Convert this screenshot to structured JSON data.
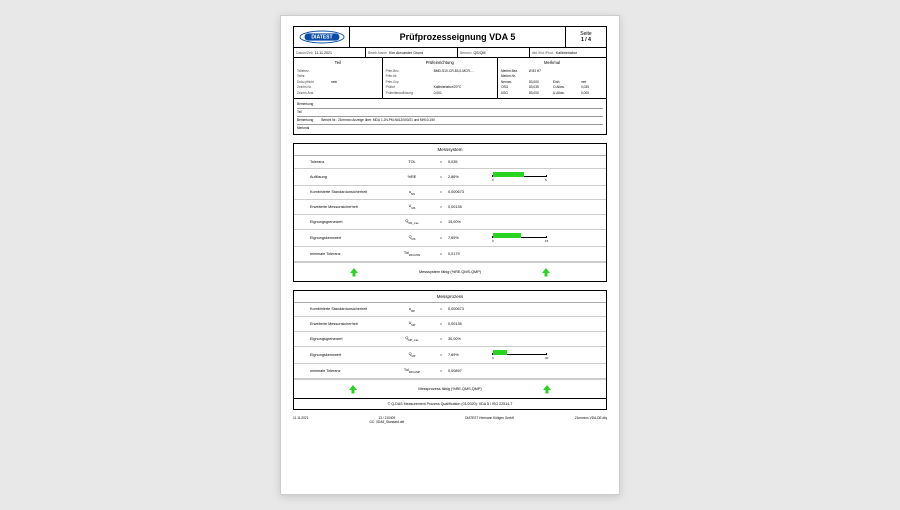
{
  "header": {
    "logo_text": "DIATEST",
    "logo_colors": {
      "fill": "#0a4da8",
      "ellipse_stroke": "#0a4da8",
      "text": "#ffffff"
    },
    "title": "Prüfprozesseignung VDA 5",
    "page_label": "Seite",
    "page_value": "1 / 4"
  },
  "meta": {
    "date_label": "Datum/Zeit",
    "date_value": "11.11.2021",
    "user_label": "Bearb.Name",
    "user_value": "Kim Alexander Grund",
    "area_label": "Bereich",
    "area_value": "QS/QM",
    "dept_label": "Abt./Kst./Prod.",
    "dept_value": "Kalibrierlabor"
  },
  "cols": {
    "teil": {
      "title": "Teil",
      "rows": [
        {
          "k": "Teilebez.",
          "v": ""
        },
        {
          "k": "Teilnr.",
          "v": ""
        },
        {
          "k": "Doku.pflicht",
          "v": "nein"
        },
        {
          "k": "Zeichn.Nr.",
          "v": ""
        },
        {
          "k": "Zeichn.Änd.",
          "v": ""
        }
      ]
    },
    "pruef": {
      "title": "Prüfeinrichtung",
      "left": [
        {
          "k": "Prfm.Bez.",
          "v": "BMD-S10-CR-83,0-MCR-..."
        },
        {
          "k": "Prfm.Nr.",
          "v": ""
        },
        {
          "k": "Prfm.Grp.",
          "v": ""
        },
        {
          "k": "Prüfort",
          "v": "Kalibrierlabor/20°C"
        },
        {
          "k": "Prüfmittelauflösung",
          "v": "0,001"
        }
      ]
    },
    "merkmal": {
      "title": "Merkmal",
      "rows": [
        {
          "k1": "Merkm.Bez.",
          "v1": "Ø 83 H7",
          "k2": "",
          "v2": ""
        },
        {
          "k1": "Merkm.Nr.",
          "v1": "",
          "k2": "",
          "v2": ""
        },
        {
          "k1": "Nennm.",
          "v1": "83,000",
          "k2": "Einh.",
          "v2": "mm"
        },
        {
          "k1": "OSG",
          "v1": "83,035",
          "k2": "O.Allow.",
          "v2": "0,035"
        },
        {
          "k1": "USG",
          "v1": "83,000",
          "k2": "U.Allow.",
          "v2": "0,000"
        }
      ]
    }
  },
  "remarks": {
    "label1": "Bemerkung",
    "label2": "Teil",
    "label3": "Bemerkung",
    "text3": "Bericht Nr.: 21mmxxx Anzeige über: MDU 1,2N-PM-N#12/000/21 und MH10-150",
    "label4": "Merkmal"
  },
  "colors": {
    "bar_fill": "#28d321",
    "arrow_fill": "#28d321"
  },
  "box1": {
    "title": "Messsystem",
    "rows": [
      {
        "name": "Toleranz",
        "sym": "TOL",
        "val": "0,035",
        "bar": null
      },
      {
        "name": "Auflösung",
        "sym": "%RE",
        "val": "2,86%",
        "bar": {
          "pct": 57,
          "max": "5"
        }
      },
      {
        "name": "Kombinierte Standardunsicherheit",
        "sym": "u<sub>MS</sub>",
        "val": "0,000673",
        "bar": null
      },
      {
        "name": "Erweiterte Messunsicherheit",
        "sym": "U<sub>MS</sub>",
        "val": "0,00135",
        "bar": null
      },
      {
        "name": "Eignungsgrenzwert",
        "sym": "Q<sub>MS_max</sub>",
        "val": "15,00%",
        "bar": null
      },
      {
        "name": "Eignungskennwert",
        "sym": "Q<sub>MS</sub>",
        "val": "7,69%",
        "bar": {
          "pct": 51,
          "max": "15"
        }
      },
      {
        "name": "minimale Toleranz",
        "sym": "Tol<sub>MIN-UMS</sub>",
        "val": "0,0179",
        "bar": null
      }
    ],
    "footer_text": "Messsystem fähig (%RE,QMS,QMP)"
  },
  "box2": {
    "title": "Messprozess",
    "rows": [
      {
        "name": "Kombinierte Standardunsicherheit",
        "sym": "u<sub>MP</sub>",
        "val": "0,000673",
        "bar": null
      },
      {
        "name": "Erweiterte Messunsicherheit",
        "sym": "U<sub>MP</sub>",
        "val": "0,00135",
        "bar": null
      },
      {
        "name": "Eignungsgrenzwert",
        "sym": "Q<sub>MP_max</sub>",
        "val": "30,00%",
        "bar": null
      },
      {
        "name": "Eignungskennwert",
        "sym": "Q<sub>MP</sub>",
        "val": "7,69%",
        "bar": {
          "pct": 26,
          "max": "30"
        }
      },
      {
        "name": "minimale Toleranz",
        "sym": "Tol<sub>MIN-UMP</sub>",
        "val": "0,00897",
        "bar": null
      }
    ],
    "footer_text": "Messprozess fähig (%RE,QMS,QMP)",
    "copyright": "© Q-DAS Measurement Process Qualification (01/2020): VDA 5 / ISO 22514-7"
  },
  "bottom": {
    "left": "11.11.2021",
    "mid_top": "13 / 210409",
    "mid_bot": "GC: VDA5_Standard.def",
    "center": "DIATEST Hermann Költgen GmbH",
    "right": "21mmxxx-VDA-DE.dfq"
  }
}
